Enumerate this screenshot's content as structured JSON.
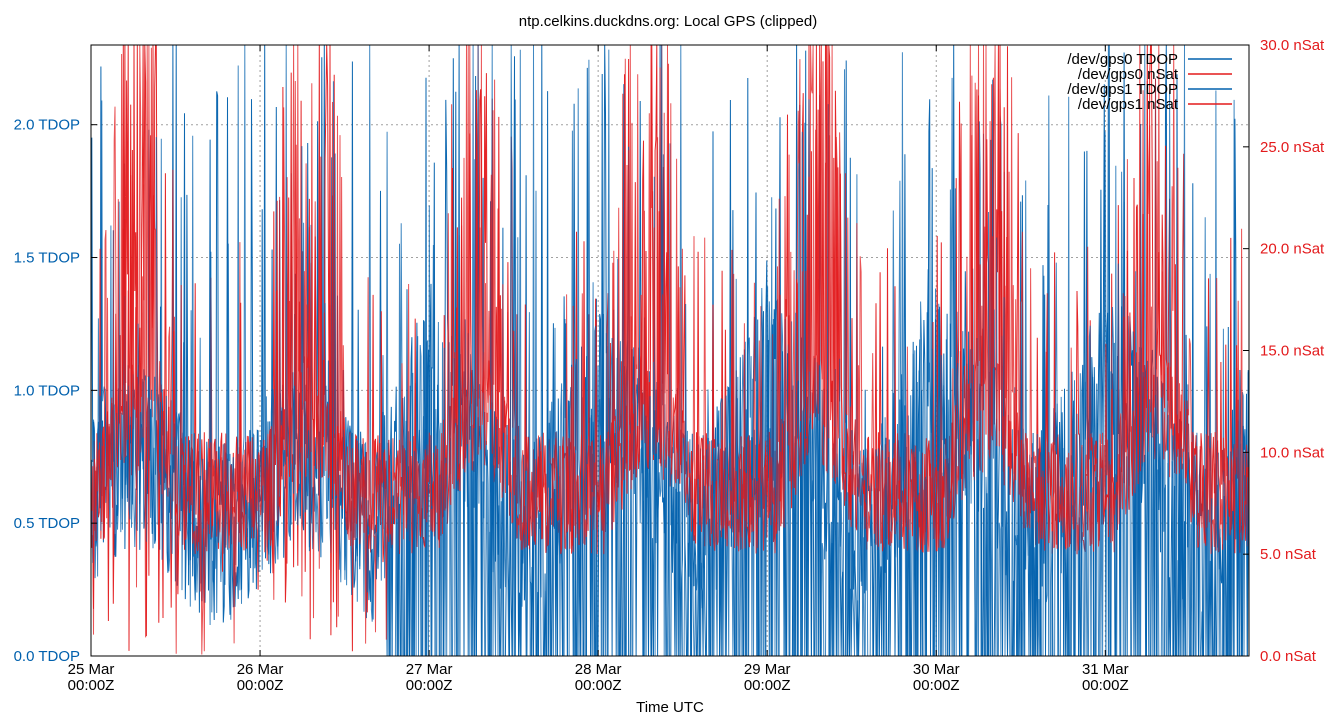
{
  "chart_data": {
    "type": "line",
    "title": "ntp.celkins.duckdns.org: Local GPS (clipped)",
    "xlabel": "Time UTC",
    "y_left": {
      "label_suffix": " TDOP",
      "range": [
        0,
        2.3
      ],
      "ticks": [
        0,
        0.5,
        1.0,
        1.5,
        2.0
      ],
      "tick_labels": [
        "0.0 TDOP",
        "0.5 TDOP",
        "1.0 TDOP",
        "1.5 TDOP",
        "2.0 TDOP"
      ],
      "color": "#0060ad"
    },
    "y_right": {
      "label_suffix": " nSat",
      "range": [
        0,
        30
      ],
      "ticks": [
        0,
        5,
        10,
        15,
        20,
        25,
        30
      ],
      "tick_labels": [
        "0.0 nSat",
        "5.0 nSat",
        "10.0 nSat",
        "15.0 nSat",
        "20.0 nSat",
        "25.0 nSat",
        "30.0 nSat"
      ],
      "color": "#e31a1c"
    },
    "x_range_days": [
      0,
      6.85
    ],
    "x_ticks": [
      {
        "day": 0,
        "line1": "25 Mar",
        "line2": "00:00Z"
      },
      {
        "day": 1,
        "line1": "26 Mar",
        "line2": "00:00Z"
      },
      {
        "day": 2,
        "line1": "27 Mar",
        "line2": "00:00Z"
      },
      {
        "day": 3,
        "line1": "28 Mar",
        "line2": "00:00Z"
      },
      {
        "day": 4,
        "line1": "29 Mar",
        "line2": "00:00Z"
      },
      {
        "day": 5,
        "line1": "30 Mar",
        "line2": "00:00Z"
      },
      {
        "day": 6,
        "line1": "31 Mar",
        "line2": "00:00Z"
      }
    ],
    "grid": true,
    "legend_position": "top-right",
    "series": [
      {
        "name": "/dev/gps0 TDOP",
        "axis": "left",
        "color": "#0060ad",
        "typical_range": [
          0.0,
          1.3
        ],
        "note": "high-frequency noisy signal, frequent spikes clipped at top"
      },
      {
        "name": "/dev/gps0 nSat",
        "axis": "right",
        "color": "#e31a1c",
        "typical_range": [
          4,
          28
        ],
        "note": "daily cycles, peaks ~27 mid-day, baseline 7-10"
      },
      {
        "name": "/dev/gps1 TDOP",
        "axis": "left",
        "color": "#0060ad",
        "typical_range": [
          0.0,
          1.3
        ],
        "note": "high-frequency noisy signal"
      },
      {
        "name": "/dev/gps1 nSat",
        "axis": "right",
        "color": "#e31a1c",
        "typical_range": [
          4,
          28
        ],
        "note": "high-frequency noisy signal"
      }
    ]
  }
}
